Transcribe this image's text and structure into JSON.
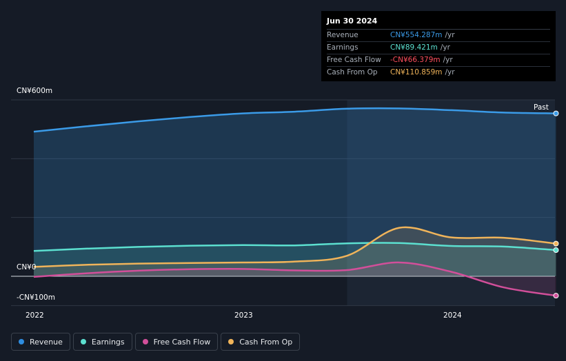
{
  "tooltip": {
    "date": "Jun 30 2024",
    "rows": [
      {
        "label": "Revenue",
        "value": "CN¥554.287m",
        "unit": "/yr",
        "color": "#3b9be8"
      },
      {
        "label": "Earnings",
        "value": "CN¥89.421m",
        "unit": "/yr",
        "color": "#5ce0d0"
      },
      {
        "label": "Free Cash Flow",
        "value": "-CN¥66.379m",
        "unit": "/yr",
        "color": "#ff4f5e"
      },
      {
        "label": "Cash From Op",
        "value": "CN¥110.859m",
        "unit": "/yr",
        "color": "#f0b45a"
      }
    ]
  },
  "past_label": "Past",
  "legend": [
    {
      "label": "Revenue",
      "color": "#2e8de0"
    },
    {
      "label": "Earnings",
      "color": "#5ce0d0"
    },
    {
      "label": "Free Cash Flow",
      "color": "#d24f9a"
    },
    {
      "label": "Cash From Op",
      "color": "#f0b45a"
    }
  ],
  "chart_data": {
    "type": "line",
    "ylabels": [
      "CN¥600m",
      "CN¥0",
      "-CN¥100m"
    ],
    "xlabels": [
      "2022",
      "2023",
      "2024"
    ],
    "ylim": [
      -100,
      600
    ],
    "xlim": [
      2021.9,
      2024.5
    ],
    "series": [
      {
        "name": "Revenue",
        "color": "#3b9be8",
        "x": [
          2022.0,
          2022.25,
          2022.5,
          2022.75,
          2023.0,
          2023.25,
          2023.5,
          2023.75,
          2024.0,
          2024.25,
          2024.5
        ],
        "y": [
          492,
          510,
          527,
          542,
          554,
          560,
          570,
          571,
          565,
          557,
          554
        ]
      },
      {
        "name": "Earnings",
        "color": "#5ce0d0",
        "x": [
          2022.0,
          2022.25,
          2022.5,
          2022.75,
          2023.0,
          2023.25,
          2023.5,
          2023.75,
          2024.0,
          2024.25,
          2024.5
        ],
        "y": [
          86,
          94,
          100,
          104,
          106,
          105,
          112,
          113,
          103,
          101,
          89
        ]
      },
      {
        "name": "Free Cash Flow",
        "color": "#d24f9a",
        "x": [
          2022.0,
          2022.25,
          2022.5,
          2022.75,
          2023.0,
          2023.25,
          2023.5,
          2023.75,
          2024.0,
          2024.25,
          2024.5
        ],
        "y": [
          -2,
          10,
          19,
          24,
          25,
          20,
          21,
          47,
          15,
          -38,
          -66
        ]
      },
      {
        "name": "Cash From Op",
        "color": "#f0b45a",
        "x": [
          2022.0,
          2022.25,
          2022.5,
          2022.75,
          2023.0,
          2023.25,
          2023.5,
          2023.75,
          2024.0,
          2024.25,
          2024.5
        ],
        "y": [
          32,
          39,
          43,
          45,
          47,
          50,
          70,
          165,
          132,
          131,
          111
        ]
      }
    ]
  }
}
